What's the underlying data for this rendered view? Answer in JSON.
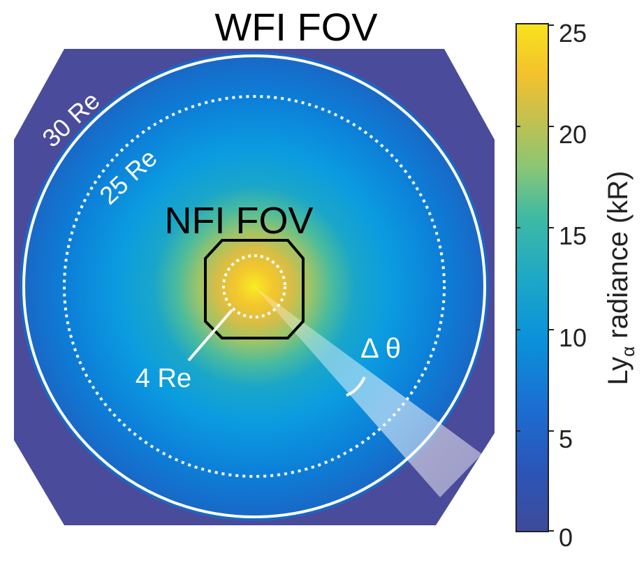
{
  "title": "WFI FOV",
  "inner_fov_label": "NFI FOV",
  "ring_labels": {
    "outer": "30 Re",
    "middle": "25 Re",
    "inner": "4 Re"
  },
  "angle_label": "Δ θ",
  "colorbar": {
    "label_prefix": "Ly",
    "label_subscript": "α",
    "label_suffix": " radiance (kR)",
    "ticks": [
      "25",
      "20",
      "15",
      "10",
      "5",
      "0"
    ],
    "range": [
      0,
      25
    ],
    "colormap": [
      "#3e4a9a",
      "#1b62c9",
      "#0a92da",
      "#1ea8c6",
      "#3fbaa3",
      "#8cc673",
      "#c9c04c",
      "#f3c12c",
      "#f7e31d"
    ]
  },
  "colors": {
    "background_field": "#4a4b9a",
    "ring": "#ffffff",
    "nfi_outline": "#000000",
    "beam": "#dde6f6"
  }
}
